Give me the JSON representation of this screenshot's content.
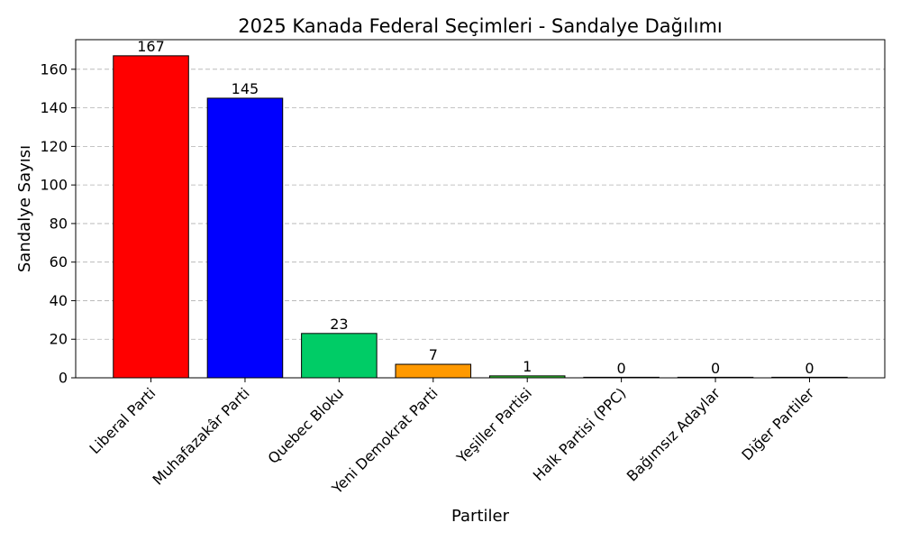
{
  "chart_data": {
    "type": "bar",
    "title": "2025 Kanada Federal Seçimleri - Sandalye Dağılımı",
    "xlabel": "Partiler",
    "ylabel": "Sandalye Sayısı",
    "categories": [
      "Liberal Parti",
      "Muhafazakâr Parti",
      "Quebec Bloku",
      "Yeni Demokrat Parti",
      "Yeşiller Partisi",
      "Halk Partisi (PPC)",
      "Bağımsız Adaylar",
      "Diğer Partiler"
    ],
    "values": [
      167,
      145,
      23,
      7,
      1,
      0,
      0,
      0
    ],
    "colors": [
      "#ff0000",
      "#0000ff",
      "#00cc66",
      "#ff9900",
      "#33cc33",
      "#8b4513",
      "#808080",
      "#4d4d4d"
    ],
    "ylim": [
      0,
      175.35
    ],
    "yticks": [
      0,
      20,
      40,
      60,
      80,
      100,
      120,
      140,
      160
    ],
    "grid": "y-dashed"
  }
}
